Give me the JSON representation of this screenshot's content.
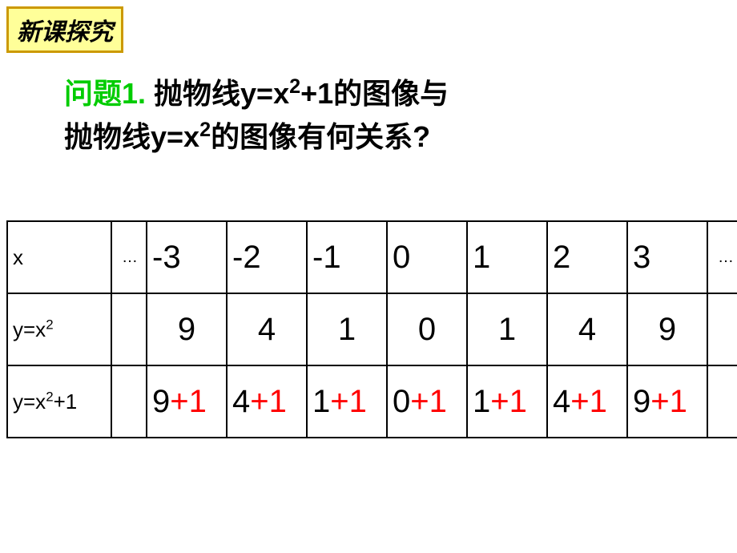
{
  "badge": {
    "text": "新课探究",
    "bg_color": "#ffff99",
    "border_color": "#cc9900",
    "font_size": 30
  },
  "question": {
    "label": "问题1.",
    "label_color": "#00cc00",
    "line1_pre": " 抛物线y=x",
    "line1_exp": "2",
    "line1_post": "+1的图像与",
    "line2_pre": "抛物线y=x",
    "line2_exp": "2",
    "line2_post": "的图像有何关系?",
    "font_size": 36
  },
  "table": {
    "border_color": "#000000",
    "font_size": 40,
    "plus_color": "#ff0000",
    "ellipsis": "…",
    "row_x": {
      "label": "x",
      "vals": [
        "-3",
        "-2",
        "-1",
        "0",
        "1",
        "2",
        "3"
      ]
    },
    "row_y1": {
      "label_pre": "y=x",
      "label_exp": "2",
      "vals": [
        "9",
        "4",
        "1",
        "0",
        "1",
        "4",
        "9"
      ]
    },
    "row_y2": {
      "label_pre": "y=x",
      "label_exp": "2",
      "label_post": "+1",
      "cells": [
        {
          "base": "9",
          "plus": "+1"
        },
        {
          "base": "4",
          "plus": "+1"
        },
        {
          "base": "1",
          "plus": "+1"
        },
        {
          "base": "0",
          "plus": "+1"
        },
        {
          "base": "1",
          "plus": "+1"
        },
        {
          "base": "4",
          "plus": "+1"
        },
        {
          "base": "9",
          "plus": "+1"
        }
      ]
    }
  }
}
